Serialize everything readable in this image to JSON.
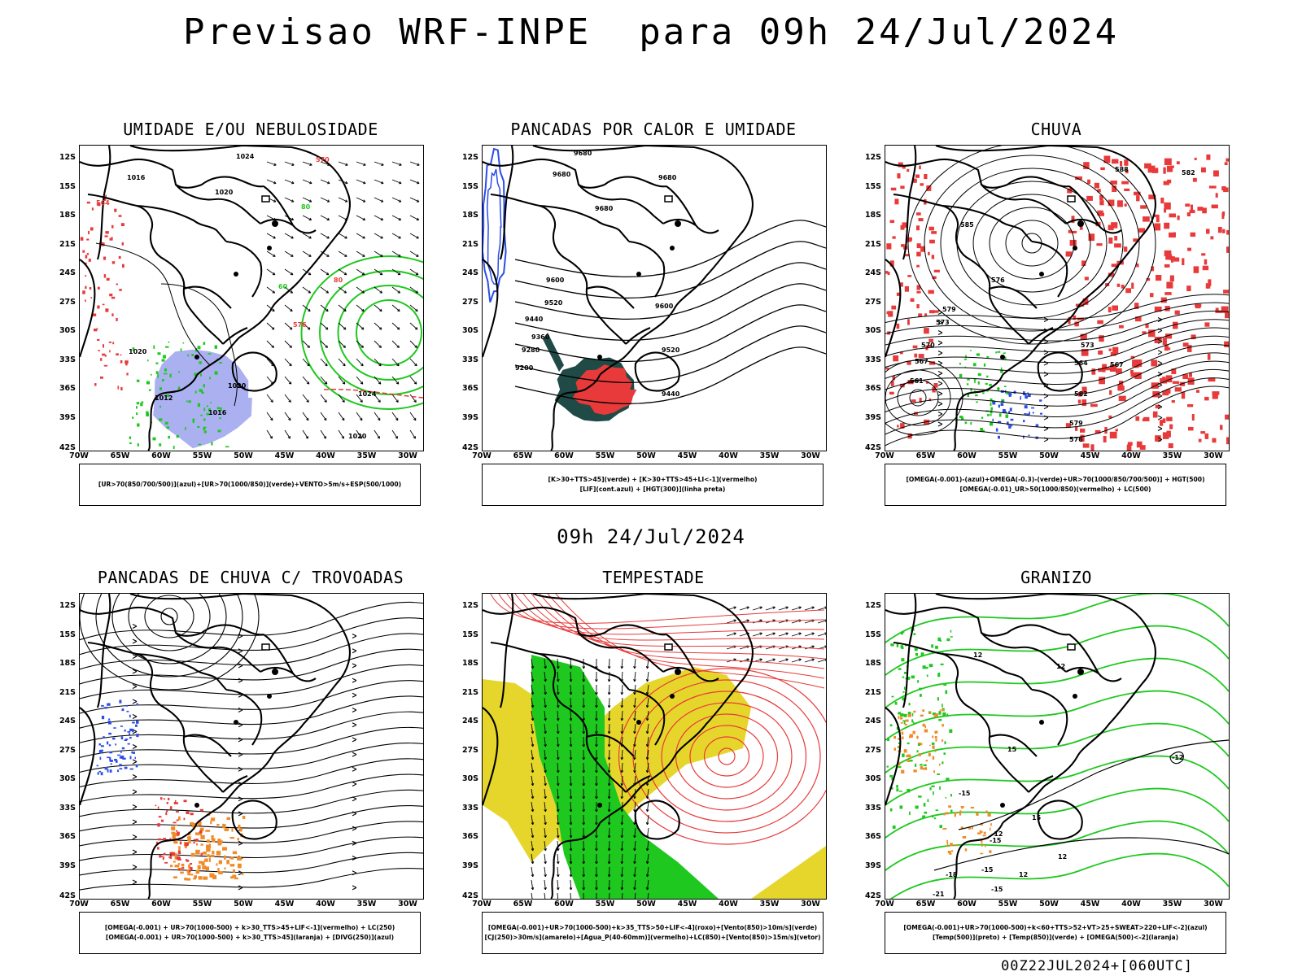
{
  "title": "Previsao WRF-INPE  para 09h 24/Jul/2024",
  "subtitle": "09h 24/Jul/2024",
  "footer": "00Z22JUL2024+[060UTC]",
  "lat_ticks": [
    "12S",
    "15S",
    "18S",
    "21S",
    "24S",
    "27S",
    "30S",
    "33S",
    "36S",
    "39S",
    "42S"
  ],
  "lon_ticks": [
    "70W",
    "65W",
    "60W",
    "55W",
    "50W",
    "45W",
    "40W",
    "35W",
    "30W"
  ],
  "colors": {
    "red": "#e83a3a",
    "green": "#1fc81f",
    "blue": "#2b4de8",
    "lightblue": "#aab0f0",
    "darkteal": "#1f4a46",
    "yellow": "#e6d62c",
    "orange": "#f08c28",
    "darkgreen": "#1aa01a"
  },
  "panels": [
    {
      "title": "UMIDADE E/OU NEBULOSIDADE",
      "legend": [
        "[UR>70(850/700/500)](azul)+[UR>70(1000/850)](verde)+VENTO>5m/s+ESP(500/1000)"
      ],
      "contour_labels": [
        "1016",
        "1020",
        "1024",
        "1020",
        "1012",
        "1016",
        "1020",
        "1024",
        "1020",
        "564",
        "570",
        "576",
        "80",
        "80",
        "60"
      ]
    },
    {
      "title": "PANCADAS POR CALOR E UMIDADE",
      "legend": [
        "[K>30+TTS>45](verde) + [K>30+TTS>45+LI<-1](vermelho)",
        "[LIF](cont.azul) + [HGT(300)](linha preta)"
      ],
      "contour_labels": [
        "9680",
        "9680",
        "9680",
        "9680",
        "9600",
        "9520",
        "9440",
        "9360",
        "9280",
        "9200",
        "9600",
        "9520",
        "9440"
      ]
    },
    {
      "title": "CHUVA",
      "legend": [
        "[OMEGA(-0.001)-(azul)+OMEGA(-0.3)-(verde)+UR>70(1000/850/700/500)] + HGT(500)",
        "[OMEGA(-0.01)_UR>50(1000/850)(vermelho) + LC(500)"
      ],
      "contour_labels": [
        "588",
        "582",
        "585",
        "576",
        "579",
        "573",
        "570",
        "567",
        "561",
        "564",
        "582",
        "579",
        "576",
        "573",
        "567"
      ]
    },
    {
      "title": "PANCADAS DE CHUVA C/ TROVOADAS",
      "legend": [
        "[OMEGA(-0.001) + UR>70(1000-500) + k>30_TTS>45+LIF<-1](vermelho) + LC(250)",
        "[OMEGA(-0.001) + UR>70(1000-500) + k>30_TTS>45](laranja) + [DIVG(250)](azul)"
      ],
      "contour_labels": []
    },
    {
      "title": "TEMPESTADE",
      "legend": [
        "[OMEGA(-0.001)+UR>70(1000-500)+k>35_TTS>50+LIF<-4](roxo)+[Vento(850)>10m/s](verde)",
        "[CJ(250)>30m/s](amarelo)+[Agua_P(40-60mm)](vermelho)+LC(850)+[Vento(850)>15m/s](vetor)"
      ],
      "contour_labels": []
    },
    {
      "title": "GRANIZO",
      "legend": [
        "[OMEGA(-0.001)+UR>70(1000-500)+k<60+TTS>52+VT>25+SWEAT>220+LIF<-2](azul)",
        "[Temp(500)](preto) + [Temp(850)](verde) + [OMEGA(500)<-2](laranja)"
      ],
      "contour_labels": [
        "-12",
        "-15",
        "-15",
        "-12",
        "-15",
        "-18",
        "-21",
        "-15",
        "12",
        "12",
        "15",
        "15",
        "12",
        "12"
      ]
    }
  ]
}
